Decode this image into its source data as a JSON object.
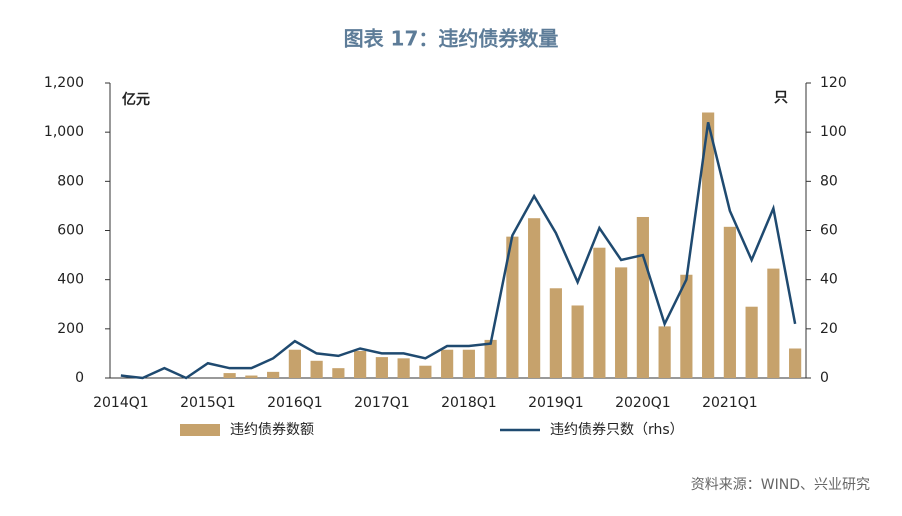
{
  "chart_data": {
    "type": "bar_line",
    "title": "图表 17：违约债券数量",
    "y_label": "亿元",
    "y2_label": "只",
    "source": "资料来源：WIND、兴业研究",
    "categories": [
      "2014Q1",
      null,
      null,
      null,
      "2015Q1",
      null,
      null,
      null,
      "2016Q1",
      null,
      null,
      null,
      "2017Q1",
      null,
      null,
      null,
      "2018Q1",
      null,
      null,
      null,
      "2019Q1",
      null,
      null,
      null,
      "2020Q1",
      null,
      null,
      null,
      "2021Q1",
      null,
      null,
      null
    ],
    "series": [
      {
        "name": "违约债券数额",
        "color": "#c6a26c",
        "kind": "bar",
        "axis": "y",
        "values": [
          0,
          0,
          0,
          0,
          0,
          20,
          10,
          25,
          115,
          70,
          40,
          110,
          85,
          80,
          50,
          115,
          115,
          155,
          575,
          650,
          365,
          295,
          530,
          450,
          655,
          210,
          420,
          1080,
          615,
          290,
          445,
          120
        ]
      },
      {
        "name": "违约债券只数（rhs）",
        "color": "#1f4a70",
        "kind": "line",
        "axis": "y2",
        "values": [
          1,
          0,
          4,
          0,
          6,
          4,
          4,
          8,
          15,
          10,
          9,
          12,
          10,
          10,
          8,
          13,
          13,
          14,
          58,
          74,
          59,
          39,
          61,
          48,
          50,
          22,
          40,
          104,
          68,
          48,
          69,
          22
        ]
      }
    ],
    "ylim": [
      0,
      1200
    ],
    "yticks": [
      0,
      200,
      400,
      600,
      800,
      {
        "value": 1000,
        "label": "1,000"
      },
      {
        "value": 1200,
        "label": "1,200"
      }
    ],
    "y2lim": [
      0,
      120
    ],
    "y2ticks": [
      0,
      20,
      40,
      60,
      80,
      100,
      120
    ]
  }
}
